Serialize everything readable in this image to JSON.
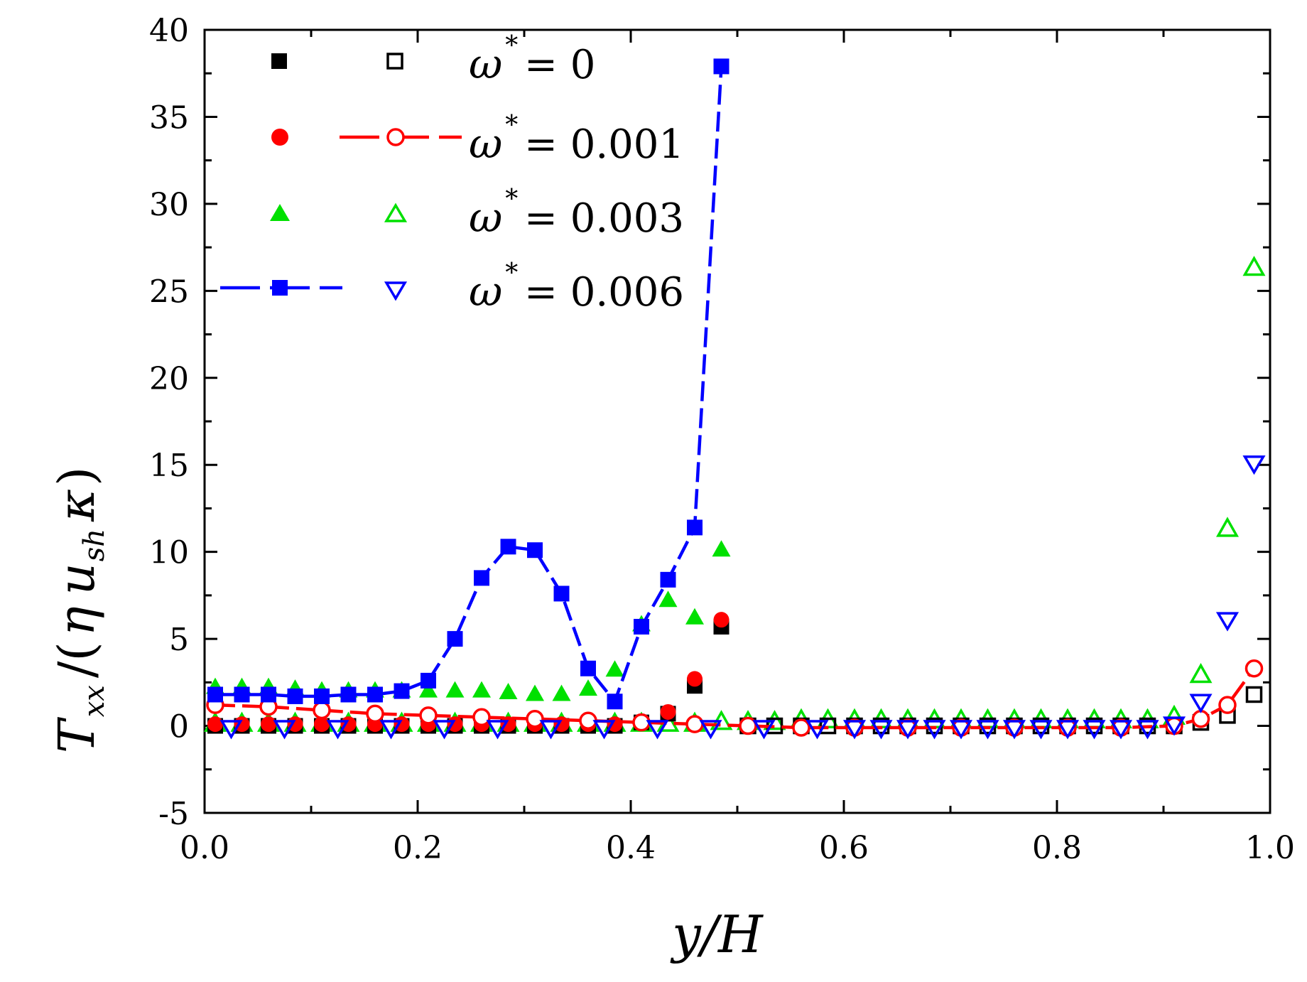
{
  "chart_data": {
    "type": "scatter",
    "title": "",
    "xlabel": "y/H",
    "ylabel": "T_xx /(η u_sh κ)",
    "ylabel_parts": {
      "main": "T",
      "main_sub": "xx",
      "slash": "/(",
      "eta": "η",
      "u": "u",
      "u_sub": "sh",
      "kappa": "κ",
      "close": ")"
    },
    "xlim": [
      0.0,
      1.0
    ],
    "ylim": [
      -5,
      40
    ],
    "x_ticks": [
      "0.0",
      "0.2",
      "0.4",
      "0.6",
      "0.8",
      "1.0"
    ],
    "y_ticks": [
      "-5",
      "0",
      "5",
      "10",
      "15",
      "20",
      "25",
      "30",
      "35",
      "40"
    ],
    "legend": [
      {
        "symbol": "ω",
        "sup": "*",
        "label": "= 0",
        "color": "#000000"
      },
      {
        "symbol": "ω",
        "sup": "*",
        "label": "= 0.001",
        "color": "#ff0000"
      },
      {
        "symbol": "ω",
        "sup": "*",
        "label": "= 0.003",
        "color": "#00e000"
      },
      {
        "symbol": "ω",
        "sup": "*",
        "label": "= 0.006",
        "color": "#0000ff"
      }
    ],
    "series": [
      {
        "name": "ω* = 0 (filled square)",
        "color": "#000000",
        "marker": "square",
        "filled": true,
        "line": false,
        "x": [
          0.01,
          0.035,
          0.06,
          0.085,
          0.11,
          0.135,
          0.16,
          0.185,
          0.21,
          0.235,
          0.26,
          0.285,
          0.31,
          0.335,
          0.36,
          0.385,
          0.41,
          0.435,
          0.46,
          0.485
        ],
        "y": [
          0,
          0,
          0,
          0,
          0,
          0,
          0,
          0,
          0,
          0,
          0,
          0,
          0,
          0,
          0,
          0,
          0.2,
          0.7,
          2.3,
          5.7
        ]
      },
      {
        "name": "ω* = 0 (open square)",
        "color": "#000000",
        "marker": "square",
        "filled": false,
        "line": false,
        "x": [
          0.51,
          0.535,
          0.56,
          0.585,
          0.61,
          0.635,
          0.66,
          0.685,
          0.71,
          0.735,
          0.76,
          0.785,
          0.81,
          0.835,
          0.86,
          0.885,
          0.91,
          0.935,
          0.96,
          0.985
        ],
        "y": [
          0,
          0,
          0,
          0,
          0,
          0,
          0,
          0,
          0,
          0,
          0,
          0,
          0,
          0,
          0,
          0,
          0,
          0.2,
          0.6,
          1.8
        ]
      },
      {
        "name": "ω* = 0.001 (filled circle)",
        "color": "#ff0000",
        "marker": "circle",
        "filled": true,
        "line": false,
        "x": [
          0.01,
          0.035,
          0.06,
          0.085,
          0.11,
          0.135,
          0.16,
          0.185,
          0.21,
          0.235,
          0.26,
          0.285,
          0.31,
          0.335,
          0.36,
          0.385,
          0.41,
          0.435,
          0.46,
          0.485
        ],
        "y": [
          0.1,
          0.1,
          0.1,
          0.1,
          0.1,
          0.1,
          0.1,
          0.1,
          0.1,
          0.1,
          0.1,
          0.1,
          0.1,
          0.1,
          0.1,
          0.1,
          0.2,
          0.8,
          2.7,
          6.1
        ]
      },
      {
        "name": "ω* = 0.001 (open circle)",
        "color": "#ff0000",
        "marker": "circle",
        "filled": false,
        "line": true,
        "dash": "28,10",
        "x": [
          0.01,
          0.06,
          0.11,
          0.16,
          0.21,
          0.26,
          0.31,
          0.36,
          0.41,
          0.46,
          0.51,
          0.56,
          0.61,
          0.66,
          0.71,
          0.76,
          0.81,
          0.86,
          0.91,
          0.935,
          0.96,
          0.985
        ],
        "y": [
          1.2,
          1.1,
          0.9,
          0.7,
          0.6,
          0.5,
          0.4,
          0.3,
          0.2,
          0.1,
          0.0,
          -0.1,
          -0.1,
          -0.1,
          -0.1,
          -0.1,
          -0.1,
          -0.1,
          0.0,
          0.4,
          1.2,
          3.3
        ]
      },
      {
        "name": "ω* = 0.003 (filled triangle)",
        "color": "#00e000",
        "marker": "triangle-up",
        "filled": true,
        "line": false,
        "x": [
          0.01,
          0.035,
          0.06,
          0.085,
          0.11,
          0.135,
          0.16,
          0.185,
          0.21,
          0.235,
          0.26,
          0.285,
          0.31,
          0.335,
          0.36,
          0.385,
          0.41,
          0.435,
          0.46,
          0.485
        ],
        "y": [
          2.2,
          2.2,
          2.2,
          2.1,
          2.0,
          2.0,
          2.0,
          2.0,
          2.0,
          2.0,
          2.0,
          1.9,
          1.8,
          1.8,
          2.1,
          3.2,
          5.8,
          7.2,
          6.2,
          10.1
        ]
      },
      {
        "name": "ω* = 0.003 (open triangle)",
        "color": "#00e000",
        "marker": "triangle-up",
        "filled": false,
        "line": false,
        "x": [
          0.01,
          0.035,
          0.06,
          0.085,
          0.11,
          0.135,
          0.16,
          0.185,
          0.21,
          0.235,
          0.26,
          0.285,
          0.31,
          0.335,
          0.36,
          0.385,
          0.41,
          0.435,
          0.46,
          0.485,
          0.51,
          0.535,
          0.56,
          0.585,
          0.61,
          0.635,
          0.66,
          0.685,
          0.71,
          0.735,
          0.76,
          0.785,
          0.81,
          0.835,
          0.86,
          0.885,
          0.91,
          0.935,
          0.96,
          0.985
        ],
        "y": [
          0.1,
          0.1,
          0.1,
          0.1,
          0.1,
          0.1,
          0.1,
          0.1,
          0.1,
          0.1,
          0.1,
          0.1,
          0.1,
          0.1,
          0.1,
          0.1,
          0.1,
          0.1,
          0.1,
          0.2,
          0.2,
          0.2,
          0.3,
          0.3,
          0.3,
          0.3,
          0.3,
          0.3,
          0.3,
          0.3,
          0.3,
          0.3,
          0.3,
          0.3,
          0.3,
          0.3,
          0.5,
          2.9,
          11.3,
          26.3
        ]
      },
      {
        "name": "ω* = 0.006 (filled square)",
        "color": "#0000ff",
        "marker": "square",
        "filled": true,
        "line": true,
        "dash": "28,10",
        "x": [
          0.01,
          0.035,
          0.06,
          0.085,
          0.11,
          0.135,
          0.16,
          0.185,
          0.21,
          0.235,
          0.26,
          0.285,
          0.31,
          0.335,
          0.36,
          0.385,
          0.41,
          0.435,
          0.46,
          0.485
        ],
        "y": [
          1.8,
          1.8,
          1.8,
          1.7,
          1.7,
          1.8,
          1.8,
          2.0,
          2.6,
          5.0,
          8.5,
          10.3,
          10.1,
          7.6,
          3.3,
          1.4,
          5.7,
          8.4,
          11.4,
          37.9
        ]
      },
      {
        "name": "ω* = 0.006 (open triangle down)",
        "color": "#0000ff",
        "marker": "triangle-down",
        "filled": false,
        "line": false,
        "x": [
          0.025,
          0.075,
          0.125,
          0.175,
          0.225,
          0.275,
          0.325,
          0.375,
          0.425,
          0.475,
          0.525,
          0.575,
          0.61,
          0.635,
          0.66,
          0.685,
          0.71,
          0.735,
          0.76,
          0.785,
          0.81,
          0.835,
          0.86,
          0.885,
          0.91,
          0.935,
          0.96,
          0.985
        ],
        "y": [
          -0.1,
          -0.1,
          -0.1,
          -0.1,
          -0.1,
          -0.1,
          -0.1,
          -0.1,
          -0.1,
          -0.1,
          -0.1,
          -0.1,
          -0.1,
          -0.1,
          -0.1,
          -0.1,
          -0.1,
          -0.1,
          -0.1,
          -0.1,
          -0.1,
          -0.1,
          -0.1,
          -0.1,
          0.1,
          1.4,
          6.1,
          15.1
        ]
      }
    ]
  }
}
